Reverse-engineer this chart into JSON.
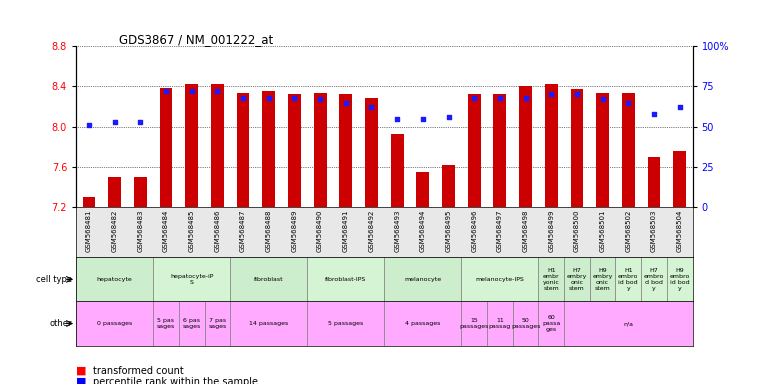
{
  "title": "GDS3867 / NM_001222_at",
  "samples": [
    "GSM568481",
    "GSM568482",
    "GSM568483",
    "GSM568484",
    "GSM568485",
    "GSM568486",
    "GSM568487",
    "GSM568488",
    "GSM568489",
    "GSM568490",
    "GSM568491",
    "GSM568492",
    "GSM568493",
    "GSM568494",
    "GSM568495",
    "GSM568496",
    "GSM568497",
    "GSM568498",
    "GSM568499",
    "GSM568500",
    "GSM568501",
    "GSM568502",
    "GSM568503",
    "GSM568504"
  ],
  "bar_values": [
    7.3,
    7.5,
    7.5,
    8.38,
    8.42,
    8.42,
    8.33,
    8.35,
    8.32,
    8.33,
    8.32,
    8.28,
    7.93,
    7.55,
    7.62,
    8.32,
    8.32,
    8.4,
    8.42,
    8.37,
    8.33,
    8.33,
    7.7,
    7.76
  ],
  "dot_values": [
    51,
    53,
    53,
    72,
    72,
    72,
    68,
    68,
    68,
    67,
    65,
    62,
    55,
    55,
    56,
    68,
    68,
    68,
    70,
    70,
    67,
    65,
    58,
    62
  ],
  "ylim": [
    7.2,
    8.8
  ],
  "y2lim": [
    0,
    100
  ],
  "yticks": [
    7.2,
    7.6,
    8.0,
    8.4,
    8.8
  ],
  "y2ticks": [
    0,
    25,
    50,
    75,
    100
  ],
  "y2ticklabels": [
    "0",
    "25",
    "50",
    "75",
    "100%"
  ],
  "bar_color": "#cc0000",
  "dot_color": "#1a1aff",
  "bar_bottom": 7.2,
  "cell_type_groups": [
    {
      "label": "hepatocyte",
      "start": 0,
      "end": 3,
      "color": "#cceecc"
    },
    {
      "label": "hepatocyte-iP\nS",
      "start": 3,
      "end": 6,
      "color": "#d4f4d4"
    },
    {
      "label": "fibroblast",
      "start": 6,
      "end": 9,
      "color": "#cceecc"
    },
    {
      "label": "fibroblast-IPS",
      "start": 9,
      "end": 12,
      "color": "#d4f4d4"
    },
    {
      "label": "melanocyte",
      "start": 12,
      "end": 15,
      "color": "#cceecc"
    },
    {
      "label": "melanocyte-IPS",
      "start": 15,
      "end": 18,
      "color": "#d4f4d4"
    },
    {
      "label": "H1\nembr\nyonic\nstem",
      "start": 18,
      "end": 19,
      "color": "#cceecc"
    },
    {
      "label": "H7\nembry\nonic\nstem",
      "start": 19,
      "end": 20,
      "color": "#cceecc"
    },
    {
      "label": "H9\nembry\nonic\nstem",
      "start": 20,
      "end": 21,
      "color": "#cceecc"
    },
    {
      "label": "H1\nembro\nid bod\ny",
      "start": 21,
      "end": 22,
      "color": "#d4f4d4"
    },
    {
      "label": "H7\nembro\nd bod\ny",
      "start": 22,
      "end": 23,
      "color": "#d4f4d4"
    },
    {
      "label": "H9\nembro\nid bod\ny",
      "start": 23,
      "end": 24,
      "color": "#d4f4d4"
    }
  ],
  "other_groups": [
    {
      "label": "0 passages",
      "start": 0,
      "end": 3
    },
    {
      "label": "5 pas\nsages",
      "start": 3,
      "end": 4
    },
    {
      "label": "6 pas\nsages",
      "start": 4,
      "end": 5
    },
    {
      "label": "7 pas\nsages",
      "start": 5,
      "end": 6
    },
    {
      "label": "14 passages",
      "start": 6,
      "end": 9
    },
    {
      "label": "5 passages",
      "start": 9,
      "end": 12
    },
    {
      "label": "4 passages",
      "start": 12,
      "end": 15
    },
    {
      "label": "15\npassages",
      "start": 15,
      "end": 16
    },
    {
      "label": "11\npassag",
      "start": 16,
      "end": 17
    },
    {
      "label": "50\npassages",
      "start": 17,
      "end": 18
    },
    {
      "label": "60\npassa\nges",
      "start": 18,
      "end": 19
    },
    {
      "label": "n/a",
      "start": 19,
      "end": 24
    }
  ]
}
